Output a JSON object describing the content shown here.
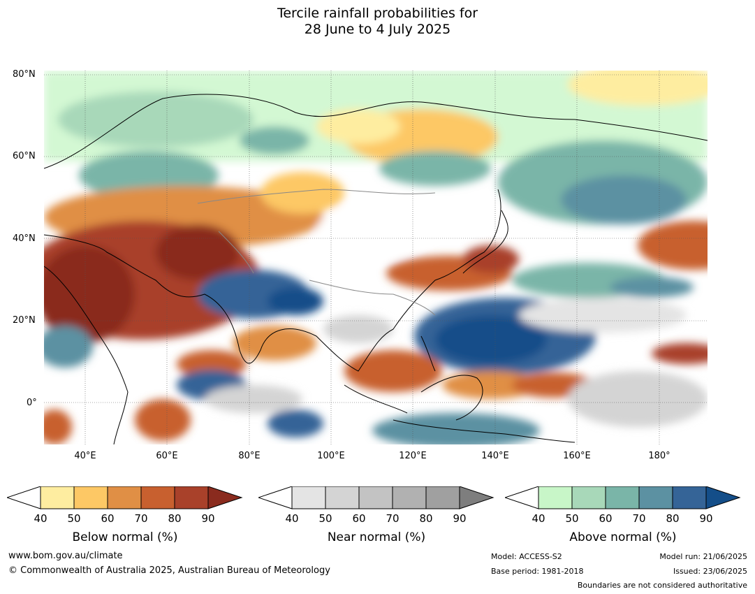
{
  "title_line1": "Tercile rainfall probabilities for",
  "title_line2": "28 June to 4 July 2025",
  "lat_labels": [
    "80°N",
    "60°N",
    "40°N",
    "20°N",
    "0°"
  ],
  "lon_labels": [
    "40°E",
    "60°E",
    "80°E",
    "100°E",
    "120°E",
    "140°E",
    "160°E",
    "180°"
  ],
  "colorbars": [
    {
      "label": "Below normal (%)",
      "ticks": [
        "40",
        "50",
        "60",
        "70",
        "80",
        "90"
      ],
      "colors": [
        "#ffffff",
        "#feeda0",
        "#fdc865",
        "#e08f45",
        "#c8602f",
        "#a9412a",
        "#8a2b1e"
      ]
    },
    {
      "label": "Near normal (%)",
      "ticks": [
        "40",
        "50",
        "60",
        "70",
        "80",
        "90"
      ],
      "colors": [
        "#ffffff",
        "#e4e4e4",
        "#d4d4d4",
        "#c3c3c3",
        "#b1b1b1",
        "#a0a0a0",
        "#7e7e7e"
      ]
    },
    {
      "label": "Above normal (%)",
      "ticks": [
        "40",
        "50",
        "60",
        "70",
        "80",
        "90"
      ],
      "colors": [
        "#ffffff",
        "#c8f6c8",
        "#a8d8b9",
        "#7ab5a8",
        "#5c91a2",
        "#356497",
        "#144e89"
      ]
    }
  ],
  "footer": {
    "website": "www.bom.gov.au/climate",
    "copyright": "© Commonwealth of Australia 2025, Australian Bureau of Meteorology",
    "model": "Model: ACCESS-S2",
    "base_period": "Base period: 1981-2018",
    "model_run": "Model run: 21/06/2025",
    "issued": "Issued: 23/06/2025",
    "disclaimer": "Boundaries are not considered authoritative"
  }
}
